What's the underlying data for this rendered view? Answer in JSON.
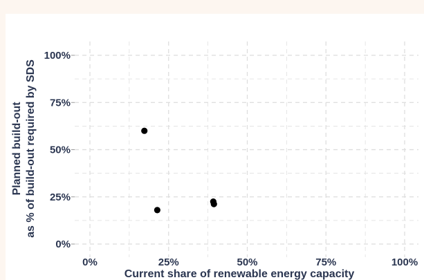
{
  "chart_data": {
    "type": "scatter",
    "title": "",
    "xlabel": "Current share of renewable energy capacity",
    "ylabel_line1": "Planned build-out",
    "ylabel_line2": "as % of build-out required by SDS",
    "xlim": [
      0,
      100
    ],
    "ylim": [
      0,
      100
    ],
    "x_ticks": [
      0,
      25,
      50,
      75,
      100
    ],
    "x_tick_labels": [
      "0%",
      "25%",
      "50%",
      "75%",
      "100%"
    ],
    "y_ticks": [
      0,
      25,
      50,
      75,
      100
    ],
    "y_tick_labels": [
      "0%",
      "25%",
      "50%",
      "75%",
      "100%"
    ],
    "grid": true,
    "grid_style": "dashed",
    "point_color": "#000000",
    "points": [
      {
        "x": 17.3,
        "y": 60
      },
      {
        "x": 21.4,
        "y": 18
      },
      {
        "x": 39.2,
        "y": 22.5
      },
      {
        "x": 39.4,
        "y": 21.2
      }
    ]
  }
}
